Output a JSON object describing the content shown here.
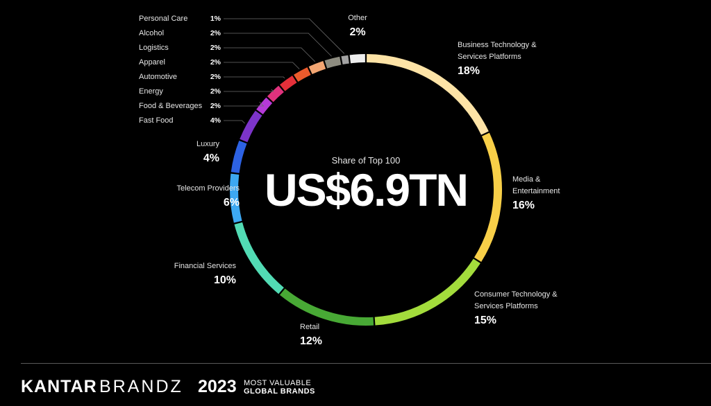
{
  "chart_data": {
    "type": "donut",
    "center_label": "Share of Top 100",
    "center_value": "US$6.9TN",
    "categories": [
      "Business Technology & Services Platforms",
      "Media & Entertainment",
      "Consumer Technology & Services Platforms",
      "Retail",
      "Financial Services",
      "Telecom Providers",
      "Luxury",
      "Fast Food",
      "Food & Beverages",
      "Energy",
      "Automotive",
      "Apparel",
      "Logistics",
      "Alcohol",
      "Personal Care",
      "Other"
    ],
    "values": [
      18,
      16,
      15,
      12,
      10,
      6,
      4,
      4,
      2,
      2,
      2,
      2,
      2,
      2,
      1,
      2
    ],
    "value_labels": [
      "18%",
      "16%",
      "15%",
      "12%",
      "10%",
      "6%",
      "4%",
      "4%",
      "2%",
      "2%",
      "2%",
      "2%",
      "2%",
      "2%",
      "1%",
      "2%"
    ],
    "colors": [
      "#fde3a6",
      "#f8cf48",
      "#a3dc3c",
      "#48a935",
      "#52dbb4",
      "#3da8f2",
      "#2d62e3",
      "#7c34c9",
      "#b63ad8",
      "#e0327d",
      "#e5303a",
      "#ec5b2c",
      "#f2a572",
      "#8d8c80",
      "#a3a3a3",
      "#eeeeee"
    ]
  },
  "footer": {
    "brand": "KANTAR",
    "sub_brand": "BRANDZ",
    "year": "2023",
    "tagline_1": "MOST VALUABLE",
    "tagline_2": "GLOBAL BRANDS"
  }
}
